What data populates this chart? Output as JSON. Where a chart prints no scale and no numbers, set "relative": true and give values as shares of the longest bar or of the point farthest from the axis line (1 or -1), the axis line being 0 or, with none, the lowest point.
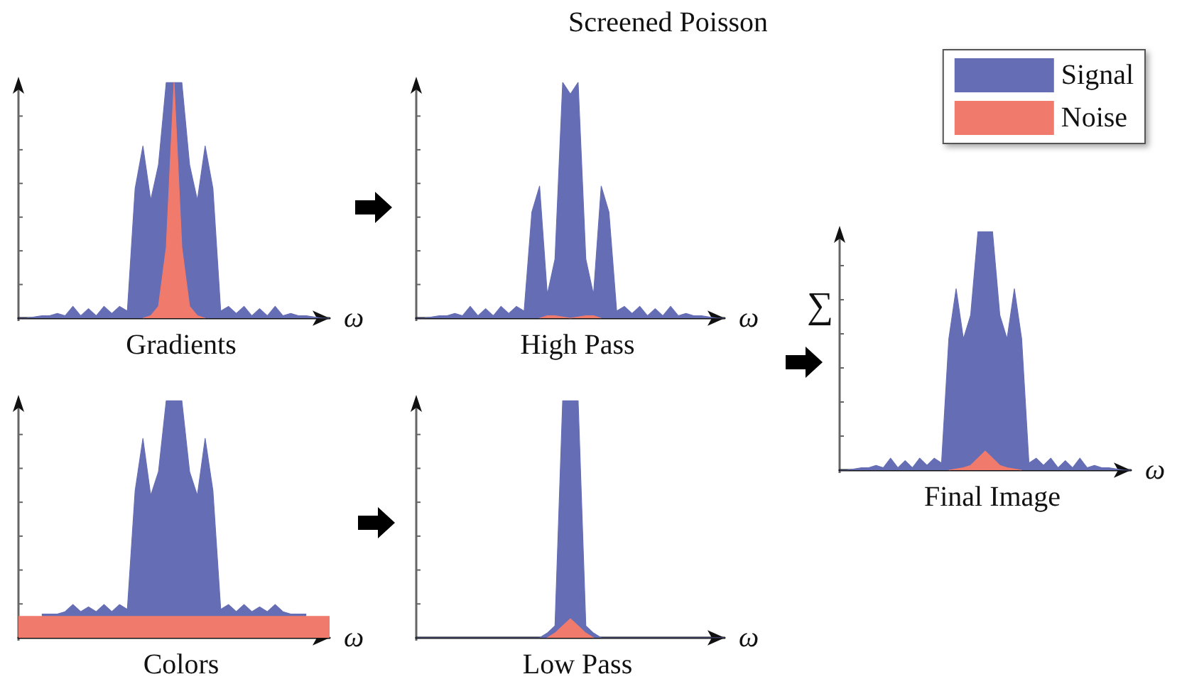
{
  "chart_data": [
    {
      "type": "area",
      "relative": true,
      "title": "Gradients",
      "xlabel": "ω",
      "grid": false,
      "legend": false,
      "categories": [
        null,
        null,
        null,
        null,
        null,
        null,
        null,
        null,
        null,
        null,
        null,
        null,
        null,
        null,
        null,
        null,
        null,
        null,
        null,
        null,
        null,
        null,
        null,
        null,
        null,
        null,
        null,
        null,
        null,
        null,
        null,
        null,
        null,
        null,
        null,
        null,
        null,
        null,
        null,
        null,
        null
      ],
      "series": [
        {
          "color": "#656db5",
          "values": [
            0,
            0,
            0.005,
            0.01,
            0.01,
            0.02,
            0.01,
            0.05,
            0.01,
            0.04,
            0.01,
            0.05,
            0.02,
            0.05,
            0.03,
            0.55,
            0.73,
            0.5,
            0.65,
            1,
            1,
            1,
            0.65,
            0.5,
            0.73,
            0.55,
            0.03,
            0.05,
            0.02,
            0.05,
            0.01,
            0.04,
            0.01,
            0.05,
            0.01,
            0.02,
            0.01,
            0.01,
            0.005,
            0,
            0
          ]
        },
        {
          "color": "#f07b6c",
          "values": [
            null,
            null,
            null,
            null,
            null,
            null,
            null,
            null,
            null,
            null,
            null,
            null,
            null,
            null,
            null,
            null,
            0,
            0.01,
            0.05,
            0.3,
            1,
            0.3,
            0.05,
            0.01,
            0,
            null,
            null,
            null,
            null,
            null,
            null,
            null,
            null,
            null,
            null,
            null,
            null,
            null,
            null,
            null,
            null
          ]
        }
      ]
    },
    {
      "type": "area",
      "relative": true,
      "title": "High Pass",
      "xlabel": "ω",
      "annotations": [
        "Screened Poisson"
      ],
      "grid": false,
      "legend": false,
      "categories": [
        null,
        null,
        null,
        null,
        null,
        null,
        null,
        null,
        null,
        null,
        null,
        null,
        null,
        null,
        null,
        null,
        null,
        null,
        null,
        null,
        null,
        null,
        null,
        null,
        null,
        null,
        null,
        null,
        null,
        null,
        null,
        null,
        null,
        null,
        null,
        null,
        null,
        null,
        null,
        null,
        null
      ],
      "series": [
        {
          "color": "#656db5",
          "values": [
            0,
            0,
            0.005,
            0.01,
            0.01,
            0.02,
            0.01,
            0.05,
            0.01,
            0.04,
            0.01,
            0.05,
            0.02,
            0.05,
            0.03,
            0.45,
            0.56,
            0.1,
            0.25,
            1,
            0.95,
            1,
            0.25,
            0.1,
            0.56,
            0.45,
            0.03,
            0.05,
            0.02,
            0.05,
            0.01,
            0.04,
            0.01,
            0.05,
            0.01,
            0.02,
            0.01,
            0.01,
            0.005,
            0,
            0
          ]
        },
        {
          "color": "#f07b6c",
          "values": [
            null,
            null,
            null,
            null,
            null,
            null,
            null,
            null,
            null,
            null,
            null,
            null,
            null,
            null,
            null,
            null,
            0,
            0.01,
            0.01,
            0.005,
            0,
            0.005,
            0.01,
            0.01,
            0,
            null,
            null,
            null,
            null,
            null,
            null,
            null,
            null,
            null,
            null,
            null,
            null,
            null,
            null,
            null,
            null
          ]
        }
      ]
    },
    {
      "type": "area",
      "relative": true,
      "title": "Colors",
      "xlabel": "ω",
      "grid": false,
      "legend": false,
      "categories": [
        null,
        null,
        null,
        null,
        null,
        null,
        null,
        null,
        null,
        null,
        null,
        null,
        null,
        null,
        null,
        null,
        null,
        null,
        null,
        null,
        null,
        null,
        null,
        null,
        null,
        null,
        null,
        null,
        null,
        null,
        null,
        null,
        null,
        null,
        null,
        null,
        null,
        null,
        null,
        null,
        null
      ],
      "series": [
        {
          "color": "#656db5",
          "values": [
            null,
            null,
            null,
            0.1,
            0.1,
            0.1,
            0.11,
            0.14,
            0.11,
            0.13,
            0.11,
            0.14,
            0.11,
            0.14,
            0.12,
            0.62,
            0.84,
            0.6,
            0.7,
            1,
            1,
            1,
            0.7,
            0.6,
            0.84,
            0.62,
            0.12,
            0.14,
            0.11,
            0.14,
            0.11,
            0.13,
            0.11,
            0.14,
            0.11,
            0.1,
            0.1,
            0.1,
            null,
            null,
            null
          ]
        },
        {
          "color": "#f07b6c",
          "values": [
            0.09,
            0.09,
            0.09,
            0.09,
            0.09,
            0.09,
            0.09,
            0.09,
            0.09,
            0.09,
            0.09,
            0.09,
            0.09,
            0.09,
            0.09,
            0.09,
            0.09,
            0.09,
            0.09,
            0.09,
            0.09,
            0.09,
            0.09,
            0.09,
            0.09,
            0.09,
            0.09,
            0.09,
            0.09,
            0.09,
            0.09,
            0.09,
            0.09,
            0.09,
            0.09,
            0.09,
            0.09,
            0.09,
            0.09,
            0.09,
            0.09
          ]
        }
      ]
    },
    {
      "type": "area",
      "relative": true,
      "title": "Low Pass",
      "xlabel": "ω",
      "grid": false,
      "legend": false,
      "categories": [
        null,
        null,
        null,
        null,
        null,
        null,
        null,
        null,
        null,
        null,
        null,
        null,
        null,
        null,
        null,
        null,
        null,
        null,
        null,
        null,
        null,
        null,
        null,
        null,
        null,
        null,
        null,
        null,
        null,
        null,
        null,
        null,
        null,
        null,
        null,
        null,
        null,
        null,
        null,
        null,
        null
      ],
      "series": [
        {
          "color": "#656db5",
          "values": [
            0,
            0,
            0,
            0,
            0,
            0,
            0,
            0,
            0,
            0,
            0,
            0,
            0,
            0,
            0,
            0,
            0,
            0.02,
            0.05,
            1,
            1,
            1,
            0.05,
            0.02,
            0,
            0,
            0,
            0,
            0,
            0,
            0,
            0,
            0,
            0,
            0,
            0,
            0,
            0,
            0,
            0,
            0
          ]
        },
        {
          "color": "#f07b6c",
          "values": [
            null,
            null,
            null,
            null,
            null,
            null,
            null,
            null,
            null,
            null,
            null,
            null,
            null,
            null,
            null,
            null,
            null,
            0,
            0.02,
            0.05,
            0.08,
            0.05,
            0.02,
            0,
            null,
            null,
            null,
            null,
            null,
            null,
            null,
            null,
            null,
            null,
            null,
            null,
            null,
            null,
            null,
            null,
            null
          ]
        }
      ]
    },
    {
      "type": "area",
      "relative": true,
      "title": "Final Image",
      "xlabel": "ω",
      "annotations": [
        "∑"
      ],
      "grid": false,
      "legend": "top right",
      "categories": [
        null,
        null,
        null,
        null,
        null,
        null,
        null,
        null,
        null,
        null,
        null,
        null,
        null,
        null,
        null,
        null,
        null,
        null,
        null,
        null,
        null,
        null,
        null,
        null,
        null,
        null,
        null,
        null,
        null,
        null,
        null,
        null,
        null,
        null,
        null,
        null,
        null,
        null,
        null,
        null,
        null
      ],
      "series": [
        {
          "name": "Signal",
          "color": "#656db5",
          "values": [
            0,
            0,
            0.005,
            0.01,
            0.01,
            0.02,
            0.01,
            0.05,
            0.01,
            0.04,
            0.01,
            0.05,
            0.02,
            0.05,
            0.03,
            0.55,
            0.76,
            0.55,
            0.65,
            1,
            1,
            1,
            0.65,
            0.55,
            0.76,
            0.55,
            0.03,
            0.05,
            0.02,
            0.05,
            0.01,
            0.04,
            0.01,
            0.05,
            0.01,
            0.02,
            0.01,
            0.01,
            0.005,
            0,
            0
          ]
        },
        {
          "name": "Noise",
          "color": "#f07b6c",
          "values": [
            null,
            null,
            null,
            null,
            null,
            null,
            null,
            null,
            null,
            null,
            null,
            null,
            null,
            null,
            null,
            0,
            0.005,
            0.01,
            0.02,
            0.05,
            0.08,
            0.05,
            0.02,
            0.01,
            0.005,
            0,
            null,
            null,
            null,
            null,
            null,
            null,
            null,
            null,
            null,
            null,
            null,
            null,
            null,
            null,
            null
          ]
        }
      ]
    }
  ]
}
